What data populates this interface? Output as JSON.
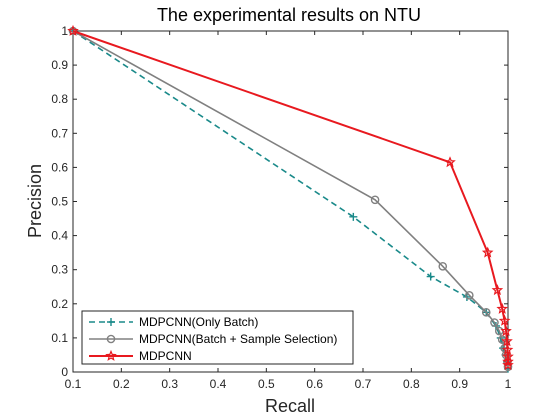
{
  "chart_data": {
    "type": "line",
    "title": "The experimental results on NTU",
    "xlabel": "Recall",
    "ylabel": "Precision",
    "xlim": [
      0.1,
      1
    ],
    "ylim": [
      0,
      1
    ],
    "xticks": [
      "0.1",
      "0.2",
      "0.3",
      "0.4",
      "0.5",
      "0.6",
      "0.7",
      "0.8",
      "0.9",
      "1"
    ],
    "yticks": [
      "0",
      "0.1",
      "0.2",
      "0.3",
      "0.4",
      "0.5",
      "0.6",
      "0.7",
      "0.8",
      "0.9",
      "1"
    ],
    "grid": false,
    "legend_position": "bottom-left",
    "series": [
      {
        "name": "MDPCNN(Only Batch)",
        "color": "#1a8a8a",
        "line_style": "dashed",
        "marker": "plus",
        "x": [
          0.1,
          0.68,
          0.84,
          0.915,
          0.955,
          0.975,
          0.985,
          0.99,
          0.995,
          0.998,
          1.0
        ],
        "y": [
          1.0,
          0.455,
          0.28,
          0.22,
          0.175,
          0.135,
          0.1,
          0.07,
          0.05,
          0.03,
          0.01
        ]
      },
      {
        "name": "MDPCNN(Batch + Sample Selection)",
        "color": "#808080",
        "line_style": "solid",
        "marker": "circle",
        "x": [
          0.1,
          0.725,
          0.865,
          0.92,
          0.955,
          0.972,
          0.982,
          0.988,
          0.993,
          0.996,
          0.999,
          1.0
        ],
        "y": [
          1.0,
          0.505,
          0.31,
          0.225,
          0.175,
          0.145,
          0.12,
          0.095,
          0.07,
          0.05,
          0.03,
          0.015
        ]
      },
      {
        "name": "MDPCNN",
        "color": "#e8191f",
        "line_style": "solid",
        "marker": "star",
        "x": [
          0.1,
          0.88,
          0.958,
          0.978,
          0.988,
          0.993,
          0.996,
          0.998,
          0.999,
          1.0,
          1.0,
          1.0
        ],
        "y": [
          1.0,
          0.615,
          0.35,
          0.24,
          0.185,
          0.15,
          0.12,
          0.09,
          0.065,
          0.045,
          0.03,
          0.02
        ]
      }
    ]
  }
}
